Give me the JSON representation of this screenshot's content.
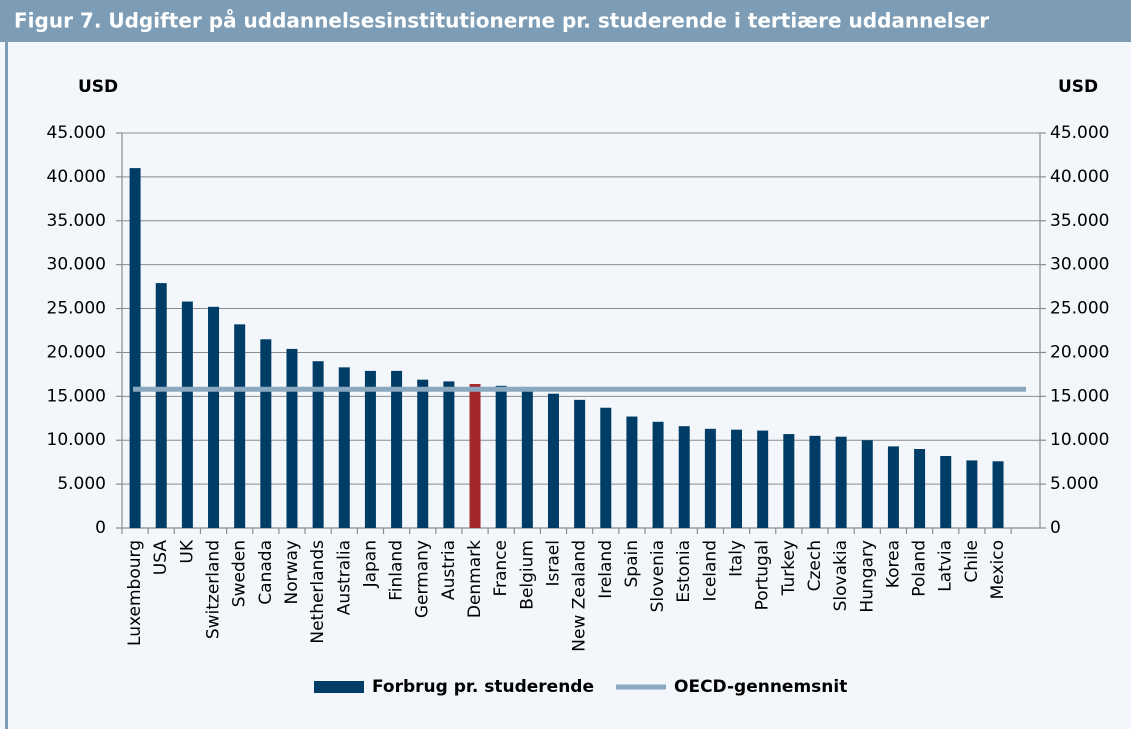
{
  "chart_data": {
    "type": "bar",
    "title": "Figur 7.  Udgifter på uddannelsesinstitutionerne pr. studerende i tertiære uddannelser",
    "ylabel": "USD",
    "y2label": "USD",
    "categories": [
      "Luxembourg",
      "USA",
      "UK",
      "Switzerland",
      "Sweden",
      "Canada",
      "Norway",
      "Netherlands",
      "Australia",
      "Japan",
      "Finland",
      "Germany",
      "Austria",
      "Denmark",
      "France",
      "Belgium",
      "Israel",
      "New Zealand",
      "Ireland",
      "Spain",
      "Slovenia",
      "Estonia",
      "Iceland",
      "Italy",
      "Portugal",
      "Turkey",
      "Czech",
      "Slovakia",
      "Hungary",
      "Korea",
      "Poland",
      "Latvia",
      "Chile",
      "Mexico"
    ],
    "series": [
      {
        "name": "Forbrug pr. studerende",
        "color": "#003d66",
        "values": [
          41000,
          27900,
          25800,
          25200,
          23200,
          21500,
          20400,
          19000,
          18300,
          17900,
          17900,
          16900,
          16700,
          16400,
          16200,
          15700,
          15300,
          14600,
          13700,
          12700,
          12100,
          11600,
          11300,
          11200,
          11100,
          10700,
          10500,
          10400,
          10000,
          9300,
          9000,
          8200,
          7700,
          7600
        ],
        "point_colors": [
          "#003d66",
          "#003d66",
          "#003d66",
          "#003d66",
          "#003d66",
          "#003d66",
          "#003d66",
          "#003d66",
          "#003d66",
          "#003d66",
          "#003d66",
          "#003d66",
          "#003d66",
          "#a3282b",
          "#003d66",
          "#003d66",
          "#003d66",
          "#003d66",
          "#003d66",
          "#003d66",
          "#003d66",
          "#003d66",
          "#003d66",
          "#003d66",
          "#003d66",
          "#003d66",
          "#003d66",
          "#003d66",
          "#003d66",
          "#003d66",
          "#003d66",
          "#003d66",
          "#003d66",
          "#003d66"
        ]
      },
      {
        "name": "OECD-gennemsnit",
        "color": "#8aa8bf",
        "type": "reference_line",
        "value": 15800
      }
    ],
    "ylim": [
      0,
      45000
    ],
    "yticks": [
      0,
      {
        "value": 5000,
        "label": "5.000"
      },
      {
        "value": 10000,
        "label": "10.000"
      },
      {
        "value": 15000,
        "label": "15.000"
      },
      {
        "value": 20000,
        "label": "20.000"
      },
      {
        "value": 25000,
        "label": "25.000"
      },
      {
        "value": 30000,
        "label": "30.000"
      },
      {
        "value": 35000,
        "label": "35.000"
      },
      {
        "value": 40000,
        "label": "40.000"
      },
      {
        "value": 45000,
        "label": "45.000"
      }
    ],
    "y2lim": [
      0,
      45000
    ],
    "y2ticks": [
      0,
      {
        "value": 5000,
        "label": "5.000"
      },
      {
        "value": 10000,
        "label": "10.000"
      },
      {
        "value": 15000,
        "label": "15.000"
      },
      {
        "value": 20000,
        "label": "20.000"
      },
      {
        "value": 25000,
        "label": "25.000"
      },
      {
        "value": 30000,
        "label": "30.000"
      },
      {
        "value": 35000,
        "label": "35.000"
      },
      {
        "value": 40000,
        "label": "40.000"
      },
      {
        "value": 45000,
        "label": "45.000"
      }
    ],
    "grid": true,
    "legend": "bottom"
  }
}
